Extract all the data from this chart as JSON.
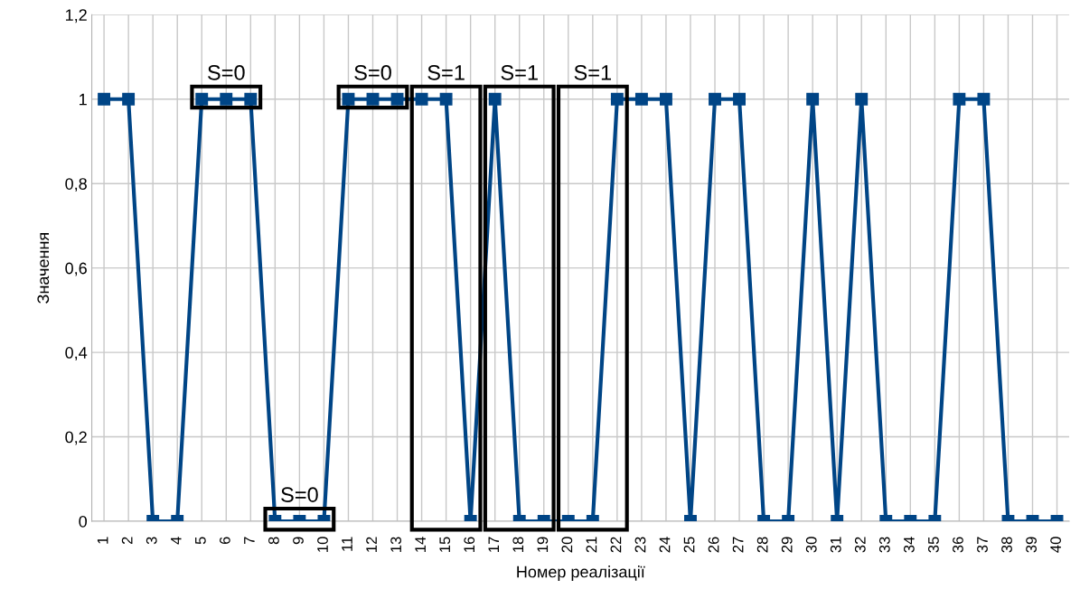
{
  "chart_data": {
    "type": "line",
    "xlabel": "Номер реалізації",
    "ylabel": "Значення",
    "categories": [
      "1",
      "2",
      "3",
      "4",
      "5",
      "6",
      "7",
      "8",
      "9",
      "10",
      "11",
      "12",
      "13",
      "14",
      "15",
      "16",
      "17",
      "18",
      "19",
      "20",
      "21",
      "22",
      "23",
      "24",
      "25",
      "26",
      "27",
      "28",
      "29",
      "30",
      "31",
      "32",
      "33",
      "34",
      "35",
      "36",
      "37",
      "38",
      "39",
      "40"
    ],
    "series": [
      {
        "color": "#004586",
        "values": [
          1,
          1,
          0,
          0,
          1,
          1,
          1,
          0,
          0,
          0,
          1,
          1,
          1,
          1,
          1,
          0,
          1,
          0,
          0,
          0,
          0,
          1,
          1,
          1,
          0,
          1,
          1,
          0,
          0,
          1,
          0,
          1,
          0,
          0,
          0,
          1,
          1,
          0,
          0,
          0
        ]
      }
    ],
    "ylim": [
      0,
      1.2
    ],
    "yticks": [
      {
        "value": 0,
        "label": "0"
      },
      {
        "value": 0.2,
        "label": "0,2"
      },
      {
        "value": 0.4,
        "label": "0,4"
      },
      {
        "value": 0.6,
        "label": "0,6"
      },
      {
        "value": 0.8,
        "label": "0,8"
      },
      {
        "value": 1,
        "label": "1"
      },
      {
        "value": 1.2,
        "label": "1,2"
      }
    ],
    "grid": true,
    "marker": "square",
    "line_style": "solid",
    "annotations": [
      {
        "text": "S=0",
        "x": "6",
        "y": 1
      },
      {
        "text": "S=0",
        "x": "9",
        "y": 0
      },
      {
        "text": "S=0",
        "x": "12",
        "y": 1
      },
      {
        "text": "S=1",
        "x": "15",
        "y": 1
      },
      "S=1",
      "S=1"
    ]
  }
}
